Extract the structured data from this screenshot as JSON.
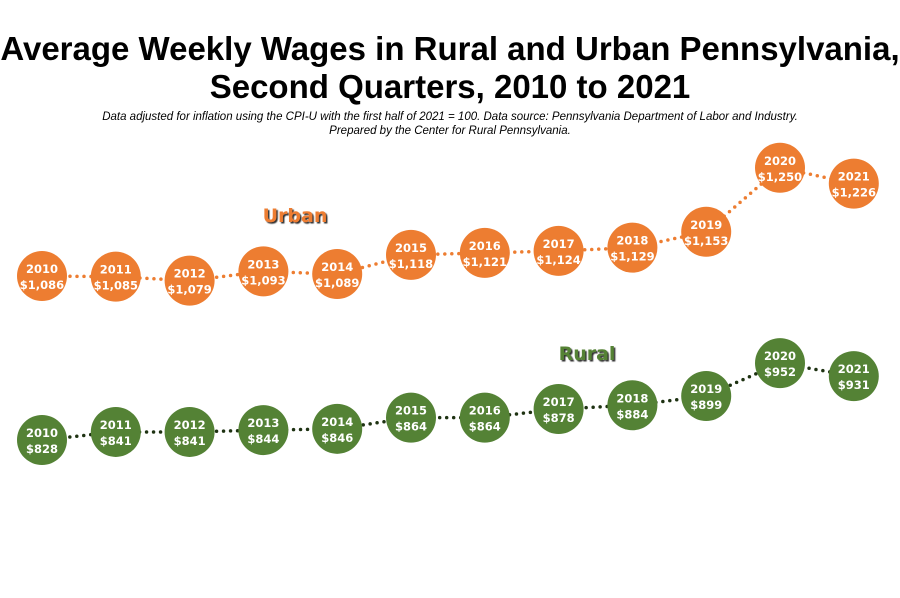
{
  "chart_data": {
    "type": "line",
    "title": "Average Weekly Wages in Rural and Urban Pennsylvania, Second Quarters, 2010 to 2021",
    "subtitle_line1": "Data adjusted for inflation using the CPI-U with the first half of 2021 = 100. Data source: Pennsylvania Department of Labor and Industry.",
    "subtitle_line2": "Prepared by the Center for Rural Pennsylvania.",
    "x": [
      "2010",
      "2011",
      "2012",
      "2013",
      "2014",
      "2015",
      "2016",
      "2017",
      "2018",
      "2019",
      "2020",
      "2021"
    ],
    "grid": false,
    "series": [
      {
        "name": "Urban",
        "color": "#ED7D31",
        "line_color": "#ED7D31",
        "values": [
          1086,
          1085,
          1079,
          1093,
          1089,
          1118,
          1121,
          1124,
          1129,
          1153,
          1250,
          1226
        ],
        "labels": [
          "$1,086",
          "$1,085",
          "$1,079",
          "$1,093",
          "$1,089",
          "$1,118",
          "$1,121",
          "$1,124",
          "$1,129",
          "$1,153",
          "$1,250",
          "$1,226"
        ]
      },
      {
        "name": "Rural",
        "color": "#548235",
        "line_color": "#1E3212",
        "values": [
          828,
          841,
          841,
          844,
          846,
          864,
          864,
          878,
          884,
          899,
          952,
          931
        ],
        "labels": [
          "$828",
          "$841",
          "$841",
          "$844",
          "$846",
          "$864",
          "$864",
          "$878",
          "$884",
          "$899",
          "$952",
          "$931"
        ]
      }
    ]
  }
}
